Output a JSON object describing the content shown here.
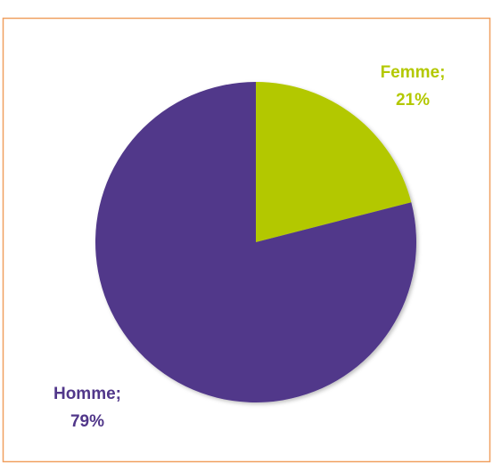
{
  "chart_data": {
    "type": "pie",
    "categories": [
      "Femme;",
      "Homme;"
    ],
    "values": [
      21,
      79
    ],
    "value_labels": [
      "21%",
      "79%"
    ],
    "colors": [
      "#b3c800",
      "#51378a"
    ]
  }
}
